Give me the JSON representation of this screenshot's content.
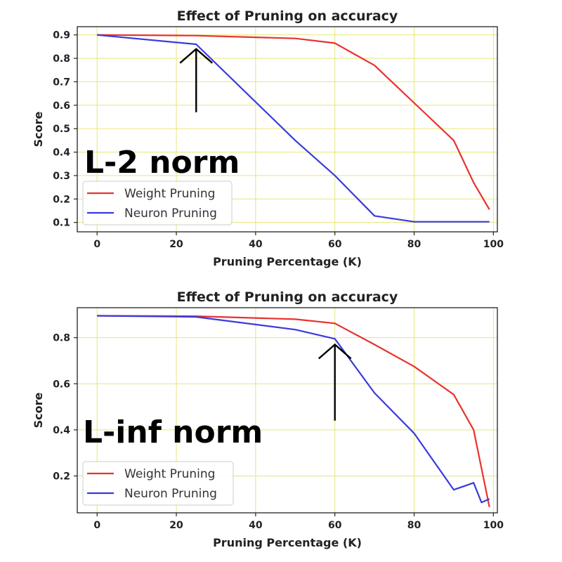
{
  "chart_data": [
    {
      "type": "line",
      "title": "Effect of Pruning on accuracy",
      "xlabel": "Pruning Percentage (K)",
      "ylabel": "Score",
      "xlim": [
        -5,
        101
      ],
      "ylim": [
        0.06,
        0.935
      ],
      "xticks": [
        0,
        20,
        40,
        60,
        80,
        100
      ],
      "yticks": [
        0.1,
        0.2,
        0.3,
        0.4,
        0.5,
        0.6,
        0.7,
        0.8,
        0.9
      ],
      "ytick_labels": [
        "0.1",
        "0.2",
        "0.3",
        "0.4",
        "0.5",
        "0.6",
        "0.7",
        "0.8",
        "0.9"
      ],
      "grid": true,
      "legend": "lower-left",
      "annotation_text": "L-2 norm",
      "arrow_at": {
        "x": 25,
        "y_from": 0.57,
        "y_to": 0.84
      },
      "series": [
        {
          "name": "Weight Pruning",
          "color": "#e8322e",
          "x": [
            0,
            25,
            50,
            60,
            70,
            80,
            90,
            95,
            99
          ],
          "y": [
            0.9,
            0.897,
            0.885,
            0.865,
            0.77,
            0.61,
            0.45,
            0.27,
            0.155
          ]
        },
        {
          "name": "Neuron Pruning",
          "color": "#3a3ae0",
          "x": [
            0,
            25,
            50,
            60,
            70,
            80,
            90,
            95,
            99
          ],
          "y": [
            0.9,
            0.86,
            0.45,
            0.3,
            0.128,
            0.103,
            0.103,
            0.103,
            0.103
          ]
        }
      ]
    },
    {
      "type": "line",
      "title": "Effect of Pruning on accuracy",
      "xlabel": "Pruning Percentage (K)",
      "ylabel": "Score",
      "xlim": [
        -5,
        101
      ],
      "ylim": [
        0.04,
        0.93
      ],
      "xticks": [
        0,
        20,
        40,
        60,
        80,
        100
      ],
      "yticks": [
        0.2,
        0.4,
        0.6,
        0.8
      ],
      "ytick_labels": [
        "0.2",
        "0.4",
        "0.6",
        "0.8"
      ],
      "grid": true,
      "legend": "lower-left",
      "annotation_text": "L-inf norm",
      "arrow_at": {
        "x": 60,
        "y_from": 0.44,
        "y_to": 0.77
      },
      "series": [
        {
          "name": "Weight Pruning",
          "color": "#e8322e",
          "x": [
            0,
            25,
            50,
            60,
            70,
            80,
            90,
            95,
            99
          ],
          "y": [
            0.895,
            0.893,
            0.88,
            0.862,
            0.77,
            0.675,
            0.553,
            0.4,
            0.065
          ]
        },
        {
          "name": "Neuron Pruning",
          "color": "#3a3ae0",
          "x": [
            0,
            25,
            50,
            60,
            70,
            80,
            90,
            95,
            97,
            99
          ],
          "y": [
            0.895,
            0.89,
            0.835,
            0.795,
            0.56,
            0.385,
            0.14,
            0.17,
            0.085,
            0.1
          ]
        }
      ]
    }
  ]
}
